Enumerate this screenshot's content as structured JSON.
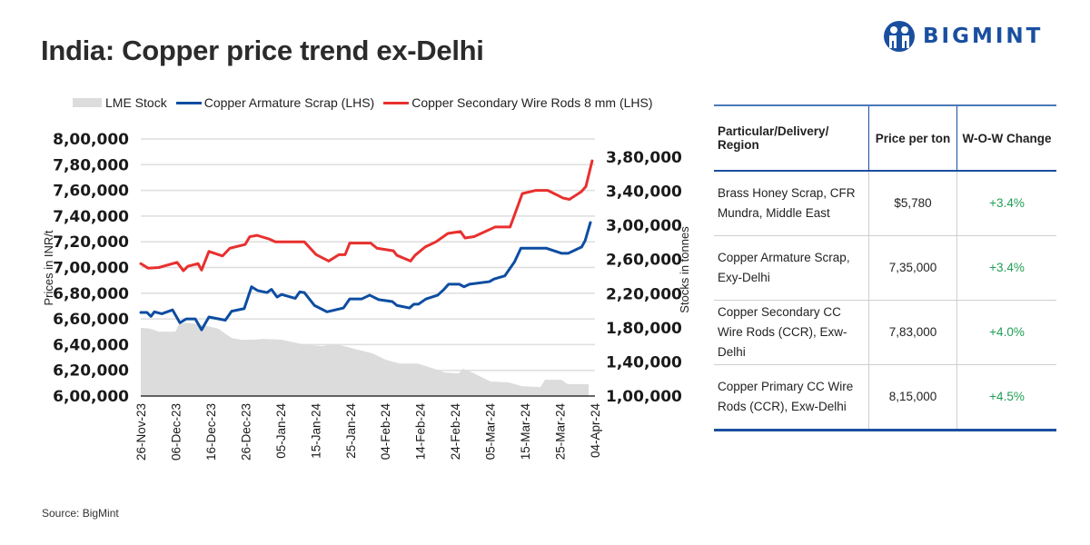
{
  "header": {
    "title": "India: Copper price trend ex-Delhi",
    "brand": "BIGMINT",
    "brand_color": "#1a4fa0"
  },
  "legend": [
    {
      "label": "LME Stock",
      "type": "area",
      "color": "#dcdcdc"
    },
    {
      "label": "Copper Armature Scrap (LHS)",
      "type": "line",
      "color": "#0d4da1"
    },
    {
      "label": "Copper Secondary Wire Rods 8 mm (LHS)",
      "type": "line",
      "color": "#e8302f"
    }
  ],
  "chart_data": {
    "type": "line",
    "title": "India: Copper price trend ex-Delhi",
    "xlabel": "",
    "ylabel": "Prices in INR/t",
    "y2label": "Stocks in tonnes",
    "ylim": [
      600000,
      800000
    ],
    "y2lim": [
      100000,
      400000
    ],
    "grid": true,
    "legend_position": "top-left",
    "x_tick_labels": [
      "26-Nov-23",
      "06-Dec-23",
      "16-Dec-23",
      "26-Dec-23",
      "05-Jan-24",
      "15-Jan-24",
      "25-Jan-24",
      "04-Feb-24",
      "14-Feb-24",
      "24-Feb-24",
      "05-Mar-24",
      "15-Mar-24",
      "25-Mar-24",
      "04-Apr-24"
    ],
    "x_tick_days": [
      0,
      10,
      20,
      30,
      40,
      50,
      60,
      70,
      80,
      90,
      100,
      110,
      120,
      130
    ],
    "y_tick_labels": [
      "6,00,000",
      "6,20,000",
      "6,40,000",
      "6,60,000",
      "6,80,000",
      "7,00,000",
      "7,20,000",
      "7,40,000",
      "7,60,000",
      "7,80,000",
      "8,00,000"
    ],
    "y_ticks": [
      600000,
      620000,
      640000,
      660000,
      680000,
      700000,
      720000,
      740000,
      760000,
      780000,
      800000
    ],
    "y2_tick_labels": [
      "1,00,000",
      "1,40,000",
      "1,80,000",
      "2,20,000",
      "2,60,000",
      "3,00,000",
      "3,40,000",
      "3,80,000"
    ],
    "y2_ticks": [
      100000,
      140000,
      180000,
      220000,
      260000,
      300000,
      340000,
      380000
    ],
    "x_unit": "days since 26-Nov-23",
    "series": [
      {
        "name": "LME Stock",
        "type": "area",
        "axis": "right",
        "color": "#dcdcdc",
        "x": [
          0,
          2.6,
          5.2,
          9.9,
          10.9,
          13,
          16.9,
          22.1,
          26,
          28.6,
          32.5,
          35.1,
          40.3,
          45.5,
          49.4,
          52,
          54.6,
          57.2,
          62.4,
          66.3,
          70.2,
          74.1,
          79.3,
          83.2,
          87.1,
          91,
          92.3,
          94.9,
          100.1,
          105.3,
          109.2,
          114.4,
          115.7,
          120.4,
          122.2,
          126.1,
          128.2
        ],
        "values": [
          180000,
          179000,
          175500,
          175500,
          184000,
          186000,
          184000,
          179000,
          168000,
          166000,
          166000,
          167000,
          166000,
          161500,
          159500,
          158500,
          160500,
          159500,
          154000,
          150000,
          142500,
          138000,
          138000,
          133000,
          127500,
          126500,
          132000,
          127500,
          117000,
          116000,
          111500,
          110500,
          119000,
          119000,
          114000,
          114000,
          114000
        ]
      },
      {
        "name": "Copper Armature Scrap (LHS)",
        "type": "line",
        "axis": "left",
        "color": "#0d4da1",
        "x": [
          0,
          1.8,
          2.9,
          3.9,
          6,
          9.1,
          11.2,
          13,
          15.6,
          17.4,
          19.5,
          24.2,
          26,
          29.6,
          31.7,
          33.5,
          36.1,
          37.4,
          39,
          40.3,
          44.2,
          45.5,
          46.8,
          49.7,
          53.3,
          58,
          59.8,
          63.2,
          65.5,
          68.1,
          72,
          73.3,
          76.9,
          78.2,
          79.5,
          81.6,
          85,
          86.8,
          88.1,
          91.2,
          92.5,
          94.1,
          99.8,
          101.1,
          104.2,
          107,
          108.8,
          116.1,
          120.5,
          122.3,
          126.2,
          127.2,
          128.7
        ],
        "values": [
          665000,
          665000,
          662000,
          665500,
          664000,
          667000,
          657000,
          660000,
          660000,
          651500,
          661500,
          659000,
          666000,
          668000,
          685000,
          682000,
          680500,
          683000,
          677000,
          679000,
          676000,
          681000,
          680500,
          670500,
          665500,
          668500,
          675500,
          675500,
          678500,
          675000,
          673500,
          670500,
          668500,
          671500,
          671500,
          675500,
          678500,
          683000,
          687000,
          687000,
          685000,
          687000,
          689000,
          691000,
          693500,
          704500,
          715000,
          715000,
          711000,
          711000,
          716000,
          721000,
          735000
        ]
      },
      {
        "name": "Copper Secondary Wire Rods 8 mm (LHS)",
        "type": "line",
        "axis": "left",
        "color": "#e8302f",
        "x": [
          0,
          2.1,
          5.2,
          10.4,
          12.2,
          13.5,
          16.4,
          17.4,
          19.5,
          23.4,
          25.5,
          29.9,
          31.2,
          33.3,
          36.9,
          38.5,
          46.8,
          50.2,
          53.8,
          56.7,
          58.5,
          59.8,
          65.8,
          67.6,
          72.3,
          73.3,
          77.2,
          78.5,
          81.4,
          84.5,
          87.9,
          91.5,
          92.8,
          95.4,
          101.4,
          103.4,
          105.7,
          107.8,
          109.2,
          113.1,
          116.5,
          120.9,
          122.7,
          126.1,
          127.4,
          129.2
        ],
        "values": [
          703000,
          699500,
          700000,
          704000,
          697500,
          701000,
          703000,
          698000,
          712500,
          709000,
          715000,
          718000,
          724000,
          725000,
          722000,
          720000,
          720000,
          710000,
          705000,
          710000,
          710000,
          719000,
          719000,
          715000,
          713000,
          709500,
          705000,
          709500,
          716000,
          720000,
          726500,
          728000,
          723000,
          724000,
          731500,
          731500,
          731500,
          747000,
          757500,
          760000,
          760000,
          754000,
          753000,
          759000,
          763000,
          783000
        ]
      }
    ]
  },
  "table": {
    "headers": [
      "Particular/Delivery/ Region",
      "Price per ton",
      "W-O-W Change"
    ],
    "rows": [
      {
        "item": "Brass Honey Scrap, CFR Mundra, Middle East",
        "price": "$5,780",
        "change": "+3.4%"
      },
      {
        "item": "Copper Armature Scrap, Exy-Delhi",
        "price": "7,35,000",
        "change": "+3.4%"
      },
      {
        "item": "Copper Secondary CC Wire Rods (CCR), Exw-Delhi",
        "price": "7,83,000",
        "change": "+4.0%"
      },
      {
        "item": "Copper Primary CC Wire Rods (CCR), Exw-Delhi",
        "price": "8,15,000",
        "change": "+4.5%"
      }
    ],
    "change_color": "#1f9e55"
  },
  "footer": {
    "source": "Source: BigMint"
  }
}
